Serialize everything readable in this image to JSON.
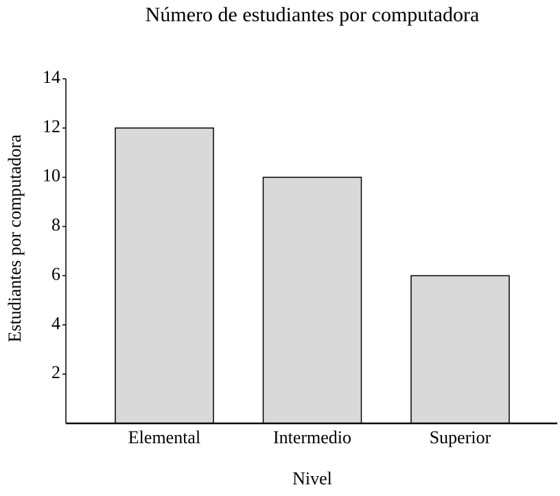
{
  "chart_data": {
    "type": "bar",
    "title": "Número de estudiantes por computadora",
    "x_label": "Nivel",
    "y_label": "Estudiantes por computadora",
    "categories": [
      "Elemental",
      "Intermedio",
      "Superior"
    ],
    "values": [
      12,
      10,
      6
    ],
    "color": "#d9d9d9",
    "ylim": [
      0,
      14
    ],
    "yticks": [
      2,
      4,
      6,
      8,
      10,
      12,
      14
    ],
    "grid": false
  }
}
